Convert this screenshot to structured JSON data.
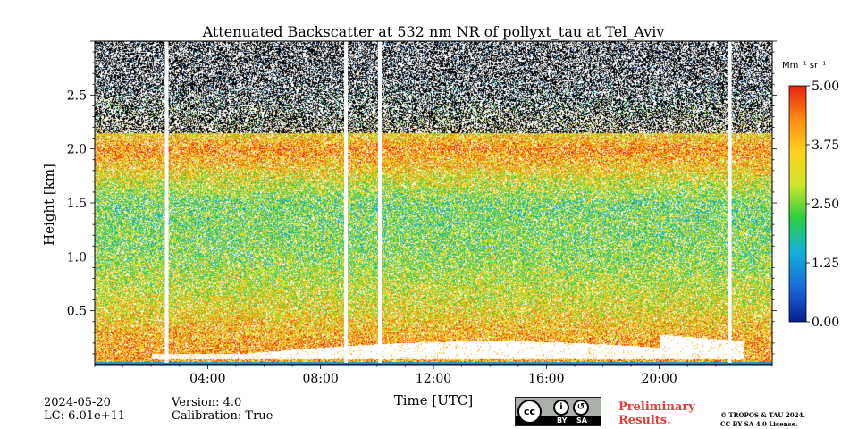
{
  "chart_data": {
    "type": "heatmap",
    "title": "Attenuated Backscatter at 532 nm NR of pollyxt_tau at Tel_Aviv",
    "xlabel": "Time [UTC]",
    "ylabel": "Height [km]",
    "x_range_hours": [
      0,
      24
    ],
    "y_range_km": [
      0,
      3.0
    ],
    "x_ticks": [
      {
        "value": 4,
        "label": "04:00"
      },
      {
        "value": 8,
        "label": "08:00"
      },
      {
        "value": 12,
        "label": "12:00"
      },
      {
        "value": 16,
        "label": "16:00"
      },
      {
        "value": 20,
        "label": "20:00"
      }
    ],
    "y_ticks": [
      {
        "value": 0.5,
        "label": "0.5"
      },
      {
        "value": 1.0,
        "label": "1.0"
      },
      {
        "value": 1.5,
        "label": "1.5"
      },
      {
        "value": 2.0,
        "label": "2.0"
      },
      {
        "value": 2.5,
        "label": "2.5"
      }
    ],
    "colorbar": {
      "unit_label": "Mm⁻¹ sr⁻¹",
      "range": [
        0.0,
        5.0
      ],
      "ticks": [
        {
          "value": 0.0,
          "label": "0.00"
        },
        {
          "value": 1.25,
          "label": "1.25"
        },
        {
          "value": 2.5,
          "label": "2.50"
        },
        {
          "value": 3.75,
          "label": "3.75"
        },
        {
          "value": 5.0,
          "label": "5.00"
        }
      ],
      "colormap": [
        "#0a1f8f",
        "#1767d8",
        "#13b3d6",
        "#2ccf3e",
        "#cfe62a",
        "#ffd21c",
        "#ff8a12",
        "#e8200f"
      ]
    },
    "data_gaps_hours": [
      2.55,
      8.9,
      10.1,
      22.5
    ],
    "profile_description": [
      {
        "height_km": 0.2,
        "value": 4.0
      },
      {
        "height_km": 0.5,
        "value": 3.3
      },
      {
        "height_km": 1.0,
        "value": 2.5
      },
      {
        "height_km": 1.5,
        "value": 2.3
      },
      {
        "height_km": 2.0,
        "value": 4.2
      },
      {
        "height_km": 2.7,
        "value": 0.2
      }
    ]
  },
  "footer": {
    "date": "2024-05-20",
    "lc": "LC: 6.01e+11",
    "version": "Version: 4.0",
    "calibration": "Calibration: True",
    "preliminary_line1": "Preliminary",
    "preliminary_line2": "Results.",
    "copyright_line1": "© TROPOS & TAU 2024.",
    "copyright_line2": "CC BY SA 4.0 License.",
    "cc_badge": {
      "logo": "cc",
      "by": "BY",
      "sa": "SA"
    }
  },
  "colors": {
    "preliminary": "#e83a3a",
    "badge_bg": "#abb1aa"
  }
}
